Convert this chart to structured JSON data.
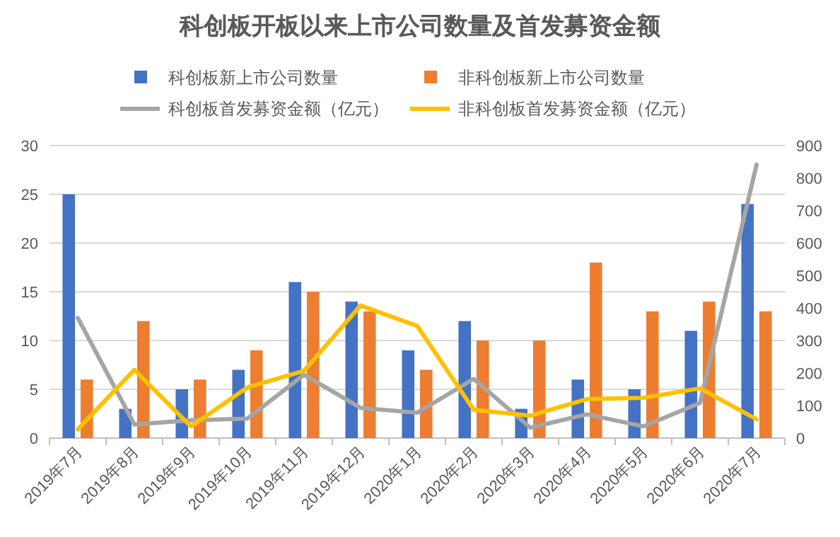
{
  "chart_data": {
    "type": "bar",
    "title": "科创板开板以来上市公司数量及首发募资金额",
    "categories": [
      "2019年7月",
      "2019年8月",
      "2019年9月",
      "2019年10月",
      "2019年11月",
      "2019年12月",
      "2020年1月",
      "2020年2月",
      "2020年3月",
      "2020年4月",
      "2020年5月",
      "2020年6月",
      "2020年7月"
    ],
    "series": [
      {
        "name": "科创板新上市公司数量",
        "color": "#4472c4",
        "values": [
          25,
          3,
          5,
          7,
          16,
          14,
          9,
          12,
          3,
          6,
          5,
          11,
          24
        ]
      },
      {
        "name": "非科创板新上市公司数量",
        "color": "#ed7d31",
        "values": [
          6,
          12,
          6,
          9,
          15,
          13,
          7,
          10,
          10,
          18,
          13,
          14,
          13
        ]
      },
      {
        "name": "科创板首发募资金额（亿元）",
        "type": "line",
        "axis": "y2",
        "color": "#a5a5a5",
        "values": [
          370,
          42,
          55,
          60,
          195,
          93,
          78,
          182,
          32,
          73,
          36,
          108,
          841
        ]
      },
      {
        "name": "非科创板首发募资金额（亿元）",
        "type": "line",
        "axis": "y2",
        "color": "#ffc000",
        "values": [
          27,
          210,
          36,
          156,
          207,
          408,
          345,
          87,
          69,
          120,
          124,
          153,
          58
        ]
      }
    ],
    "ylim": [
      0,
      30
    ],
    "yticks": [
      0,
      5,
      10,
      15,
      20,
      25,
      30
    ],
    "y2lim": [
      0,
      900
    ],
    "y2ticks": [
      0,
      100,
      200,
      300,
      400,
      500,
      600,
      700,
      800,
      900
    ],
    "grid": "y",
    "legend": "top"
  }
}
